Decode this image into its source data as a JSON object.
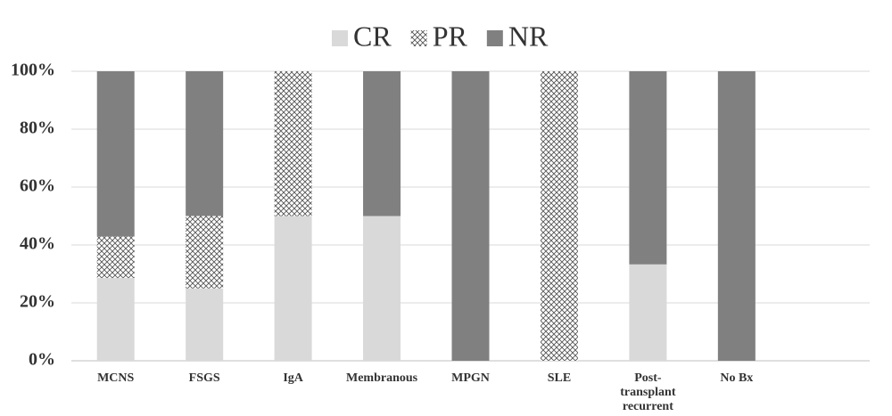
{
  "chart_data": {
    "type": "stacked_bar",
    "categories": [
      "MCNS",
      "FSGS",
      "IgA",
      "Membranous",
      "MPGN",
      "SLE",
      "Post-transplant recurrent FSGS",
      "No Bx",
      null
    ],
    "series": [
      {
        "name": "CR",
        "color": "#d9d9d9",
        "values": [
          28.6,
          25,
          50,
          50,
          0,
          0,
          33.3,
          0,
          null
        ]
      },
      {
        "name": "PR",
        "color": "#808080",
        "pattern": "crosshatch",
        "values": [
          14.3,
          25,
          50,
          0,
          0,
          100,
          0,
          0,
          null
        ]
      },
      {
        "name": "NR",
        "color": "#808080",
        "values": [
          57.1,
          50,
          0,
          50,
          100,
          0,
          66.7,
          100,
          null
        ]
      }
    ],
    "ylim": [
      0,
      100
    ],
    "yticks": [
      {
        "value": 0,
        "label": "0%"
      },
      {
        "value": 20,
        "label": "20%"
      },
      {
        "value": 40,
        "label": "40%"
      },
      {
        "value": 60,
        "label": "60%"
      },
      {
        "value": 80,
        "label": "80%"
      },
      {
        "value": 100,
        "label": "100%"
      }
    ],
    "grid": true,
    "legend": "top"
  }
}
